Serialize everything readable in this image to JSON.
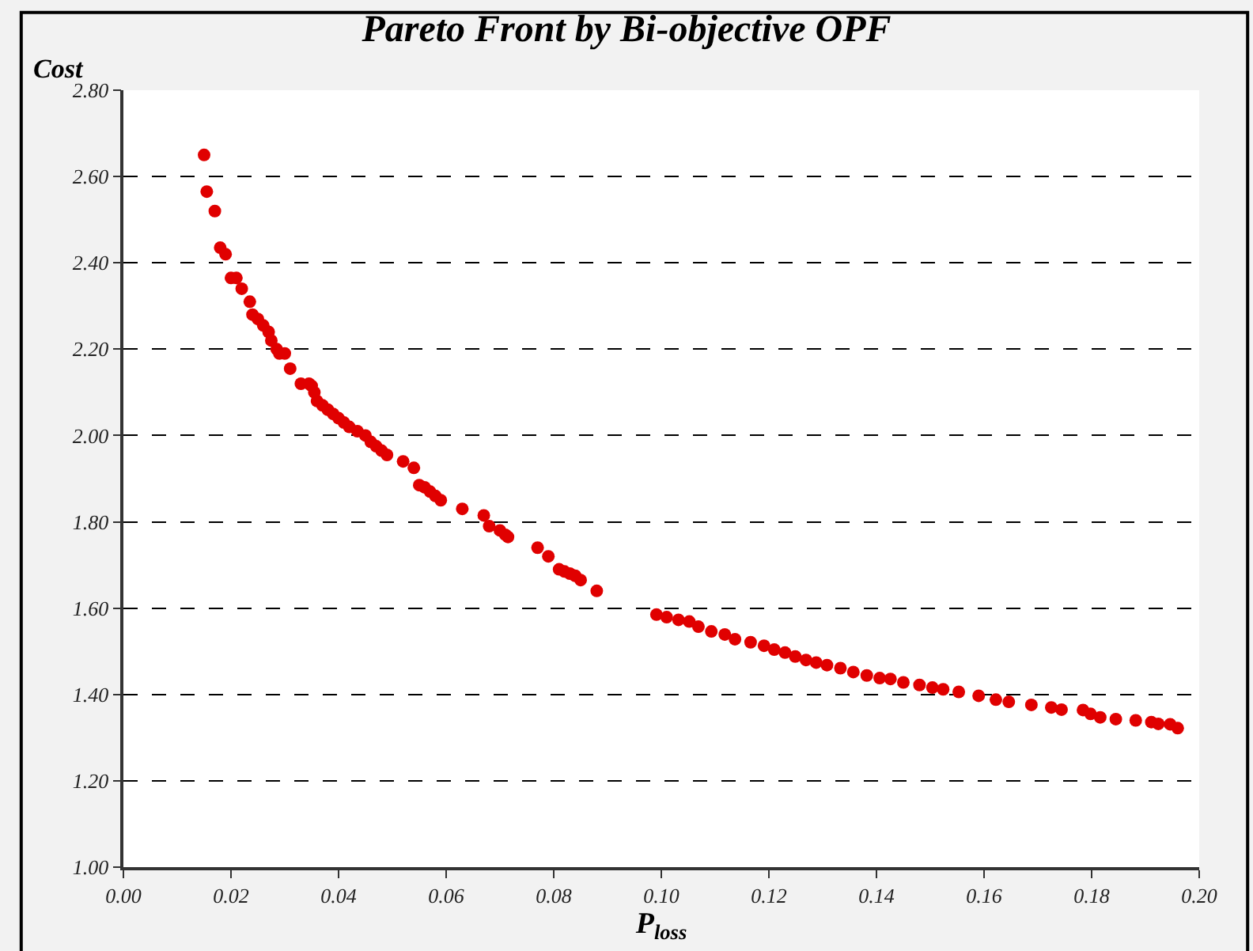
{
  "chart_data": {
    "type": "scatter",
    "title": "Pareto Front by Bi-objective OPF",
    "xlabel": "P$_{loss}$",
    "ylabel": "Cost",
    "xlim": [
      0,
      0.2
    ],
    "xticks": [
      {
        "value": 0,
        "label": "0.00"
      },
      {
        "value": 0.02,
        "label": "0.02"
      },
      {
        "value": 0.04,
        "label": "0.04"
      },
      {
        "value": 0.06,
        "label": "0.06"
      },
      {
        "value": 0.08,
        "label": "0.08"
      },
      {
        "value": 0.1,
        "label": "0.10"
      },
      {
        "value": 0.12,
        "label": "0.12"
      },
      {
        "value": 0.14,
        "label": "0.14"
      },
      {
        "value": 0.16,
        "label": "0.16"
      },
      {
        "value": 0.18,
        "label": "0.18"
      },
      {
        "value": 0.2,
        "label": "0.20"
      }
    ],
    "ylim": [
      1.0,
      2.8
    ],
    "yticks": [
      {
        "value": 1.0,
        "label": "1.00"
      },
      {
        "value": 1.2,
        "label": "1.20"
      },
      {
        "value": 1.4,
        "label": "1.40"
      },
      {
        "value": 1.6,
        "label": "1.60"
      },
      {
        "value": 1.8,
        "label": "1.80"
      },
      {
        "value": 2.0,
        "label": "2.00"
      },
      {
        "value": 2.2,
        "label": "2.20"
      },
      {
        "value": 2.4,
        "label": "2.40"
      },
      {
        "value": 2.6,
        "label": "2.60"
      },
      {
        "value": 2.8,
        "label": "2.80"
      }
    ],
    "grid": "y",
    "marker": "circle",
    "series": [
      {
        "color": "#e00000",
        "x": [
          0.015,
          0.0155,
          0.017,
          0.018,
          0.019,
          0.02,
          0.021,
          0.022,
          0.0235,
          0.024,
          0.025,
          0.026,
          0.027,
          0.0275,
          0.0285,
          0.029,
          0.03,
          0.031,
          0.033,
          0.0345,
          0.035,
          0.0355,
          0.036,
          0.037,
          0.038,
          0.039,
          0.04,
          0.041,
          0.042,
          0.0435,
          0.045,
          0.046,
          0.047,
          0.048,
          0.049,
          0.052,
          0.054,
          0.055,
          0.056,
          0.057,
          0.058,
          0.059,
          0.063,
          0.067,
          0.068,
          0.07,
          0.071,
          0.0715,
          0.077,
          0.079,
          0.081,
          0.082,
          0.083,
          0.084,
          0.085,
          0.088,
          0.0991,
          0.101,
          0.1032,
          0.1052,
          0.1069,
          0.1093,
          0.1118,
          0.1137,
          0.1166,
          0.1191,
          0.121,
          0.123,
          0.1249,
          0.1269,
          0.1288,
          0.1308,
          0.1333,
          0.1357,
          0.1382,
          0.1406,
          0.1426,
          0.145,
          0.148,
          0.1504,
          0.1524,
          0.1553,
          0.159,
          0.1622,
          0.1646,
          0.1688,
          0.1725,
          0.1744,
          0.1784,
          0.1798,
          0.1816,
          0.1845,
          0.1882,
          0.1911,
          0.1924,
          0.1946,
          0.196
        ],
        "values": [
          2.65,
          2.565,
          2.52,
          2.435,
          2.42,
          2.365,
          2.365,
          2.34,
          2.31,
          2.28,
          2.27,
          2.255,
          2.24,
          2.22,
          2.2,
          2.19,
          2.19,
          2.155,
          2.12,
          2.12,
          2.115,
          2.1,
          2.08,
          2.07,
          2.06,
          2.05,
          2.04,
          2.03,
          2.02,
          2.01,
          2.0,
          1.985,
          1.975,
          1.965,
          1.955,
          1.94,
          1.925,
          1.885,
          1.88,
          1.87,
          1.86,
          1.85,
          1.83,
          1.815,
          1.79,
          1.78,
          1.77,
          1.765,
          1.74,
          1.72,
          1.69,
          1.685,
          1.68,
          1.675,
          1.665,
          1.64,
          1.585,
          1.579,
          1.573,
          1.569,
          1.557,
          1.546,
          1.539,
          1.528,
          1.521,
          1.513,
          1.504,
          1.497,
          1.488,
          1.48,
          1.474,
          1.468,
          1.461,
          1.452,
          1.444,
          1.438,
          1.436,
          1.428,
          1.422,
          1.416,
          1.412,
          1.406,
          1.397,
          1.388,
          1.383,
          1.376,
          1.37,
          1.365,
          1.364,
          1.355,
          1.347,
          1.343,
          1.34,
          1.336,
          1.332,
          1.331,
          1.322
        ]
      }
    ]
  }
}
